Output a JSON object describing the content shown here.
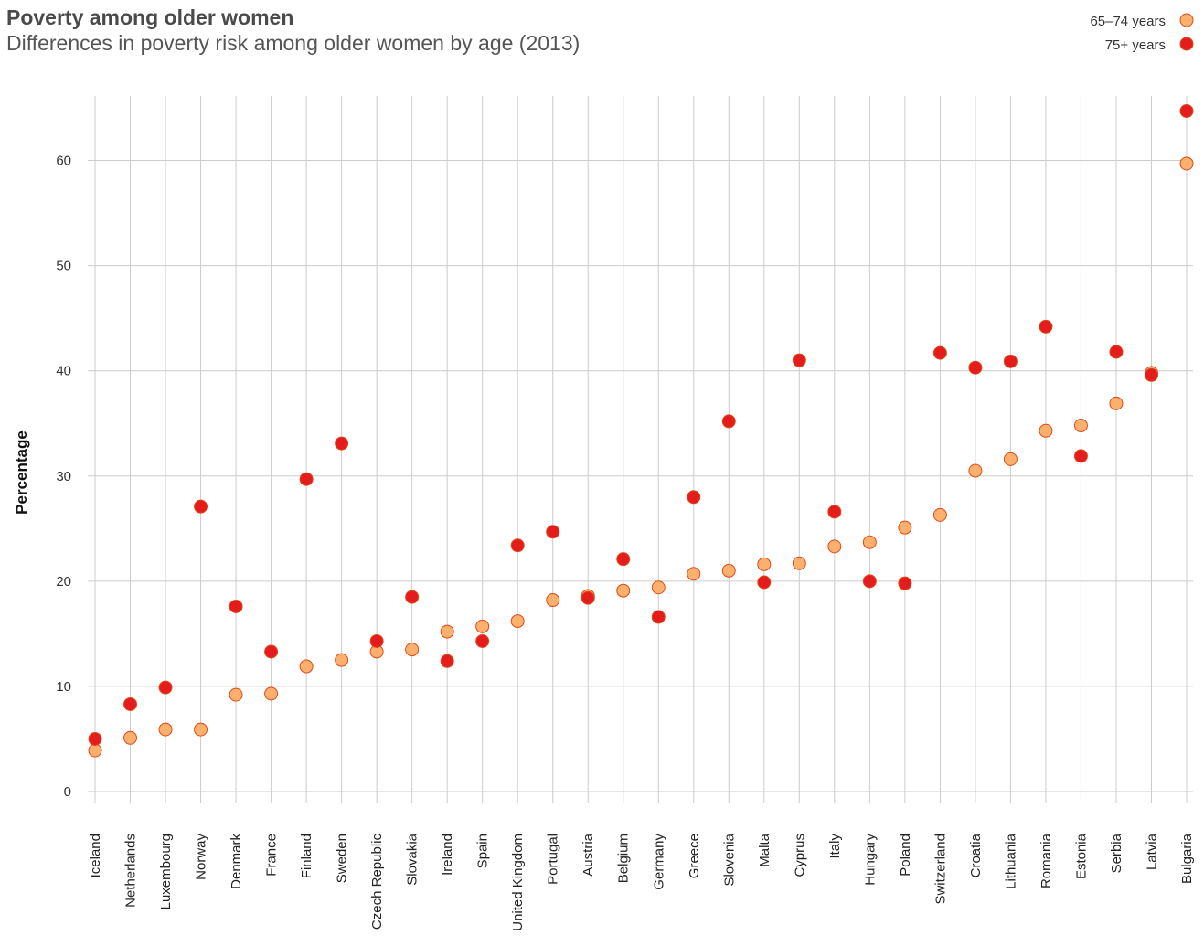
{
  "header": {
    "title": "Poverty among older women",
    "subtitle": "Differences in poverty risk among older women by age (2013)"
  },
  "colors": {
    "series_65_74": "#fbb06d",
    "series_75_plus": "#e41c1c",
    "marker_stroke": "#e04a1a",
    "grid": "#cccccc"
  },
  "chart_data": {
    "type": "scatter",
    "title": "Poverty among older women",
    "subtitle": "Differences in poverty risk among older women by age (2013)",
    "ylabel": "Percentage",
    "xlabel": "",
    "ylim": [
      0,
      65
    ],
    "yticks": [
      0,
      10,
      20,
      30,
      40,
      50,
      60
    ],
    "grid": true,
    "legend_position": "top-right",
    "categories": [
      "Iceland",
      "Netherlands",
      "Luxembourg",
      "Norway",
      "Denmark",
      "France",
      "Finland",
      "Sweden",
      "Czech Republic",
      "Slovakia",
      "Ireland",
      "Spain",
      "United Kingdom",
      "Portugal",
      "Austria",
      "Belgium",
      "Germany",
      "Greece",
      "Slovenia",
      "Malta",
      "Cyprus",
      "Italy",
      "Hungary",
      "Poland",
      "Switzerland",
      "Croatia",
      "Lithuania",
      "Romania",
      "Estonia",
      "Serbia",
      "Latvia",
      "Bulgaria"
    ],
    "series": [
      {
        "name": "65–74 years",
        "color": "#fbb06d",
        "values": [
          3.9,
          5.1,
          5.9,
          5.9,
          9.2,
          9.3,
          11.9,
          12.5,
          13.3,
          13.5,
          15.2,
          15.7,
          16.2,
          18.2,
          18.6,
          19.1,
          19.4,
          20.7,
          21.0,
          21.6,
          21.7,
          23.3,
          23.7,
          25.1,
          26.3,
          30.5,
          31.6,
          34.3,
          34.8,
          36.9,
          39.8,
          59.7
        ]
      },
      {
        "name": "75+ years",
        "color": "#e41c1c",
        "values": [
          5.0,
          8.3,
          9.9,
          27.1,
          17.6,
          13.3,
          29.7,
          33.1,
          14.3,
          18.5,
          12.4,
          14.3,
          23.4,
          24.7,
          18.4,
          22.1,
          16.6,
          28.0,
          35.2,
          19.9,
          41.0,
          26.6,
          20.0,
          19.8,
          41.7,
          40.3,
          40.9,
          44.2,
          31.9,
          41.8,
          39.6,
          64.7
        ]
      }
    ]
  }
}
